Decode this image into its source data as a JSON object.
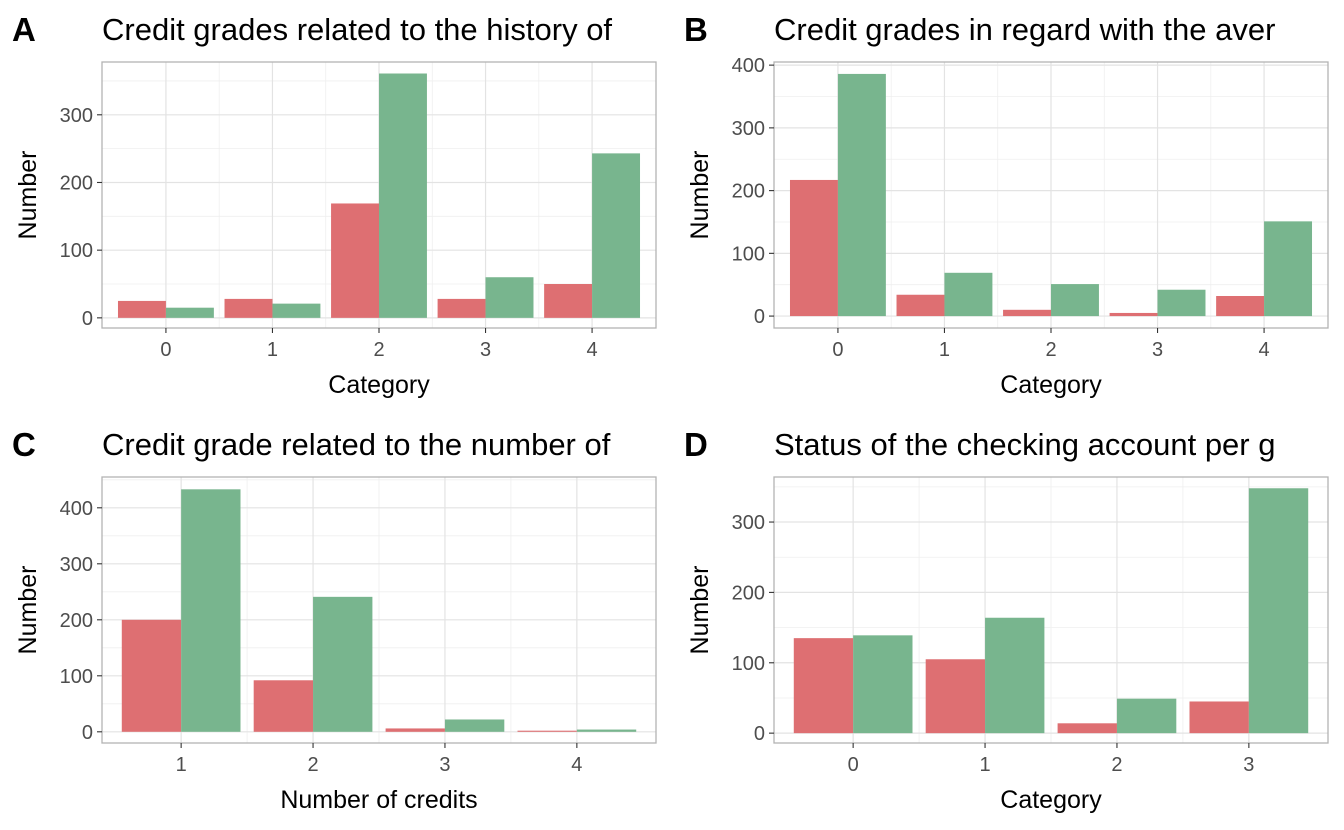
{
  "colors": {
    "bad": "#de6f72",
    "good": "#78b58e",
    "grid": "#e3e3e3",
    "frame": "#b3b3b3",
    "tick_text": "#4d4d4d"
  },
  "chart_data": [
    {
      "panel_label": "A",
      "type": "bar",
      "title": "Credit grades related to the history of",
      "xlabel": "Category",
      "ylabel": "Number",
      "categories": [
        "0",
        "1",
        "2",
        "3",
        "4"
      ],
      "series": [
        {
          "values": [
            25,
            28,
            169,
            28,
            50
          ]
        },
        {
          "values": [
            15,
            21,
            361,
            60,
            243
          ]
        }
      ],
      "ylim": [
        -15,
        378
      ],
      "yticks": [
        0,
        100,
        200,
        300
      ],
      "grid": true,
      "legend": "none"
    },
    {
      "panel_label": "B",
      "type": "bar",
      "title": "Credit grades in regard with the aver",
      "xlabel": "Category",
      "ylabel": "Number",
      "categories": [
        "0",
        "1",
        "2",
        "3",
        "4"
      ],
      "series": [
        {
          "values": [
            217,
            34,
            10,
            5,
            32
          ]
        },
        {
          "values": [
            386,
            69,
            51,
            42,
            151
          ]
        }
      ],
      "ylim": [
        -19,
        405
      ],
      "yticks": [
        0,
        100,
        200,
        300,
        400
      ],
      "grid": true,
      "legend": "none"
    },
    {
      "panel_label": "C",
      "type": "bar",
      "title": "Credit grade related to the number of",
      "xlabel": "Number of credits",
      "ylabel": "Number",
      "categories": [
        "1",
        "2",
        "3",
        "4"
      ],
      "series": [
        {
          "values": [
            200,
            92,
            6,
            2
          ]
        },
        {
          "values": [
            433,
            241,
            22,
            4
          ]
        }
      ],
      "ylim": [
        -20,
        455
      ],
      "yticks": [
        0,
        100,
        200,
        300,
        400
      ],
      "grid": true,
      "legend": "none"
    },
    {
      "panel_label": "D",
      "type": "bar",
      "title": "Status of the checking account per g",
      "xlabel": "Category",
      "ylabel": "Number",
      "categories": [
        "0",
        "1",
        "2",
        "3"
      ],
      "series": [
        {
          "values": [
            135,
            105,
            14,
            45
          ]
        },
        {
          "values": [
            139,
            164,
            49,
            348
          ]
        }
      ],
      "ylim": [
        -14,
        364
      ],
      "yticks": [
        0,
        100,
        200,
        300
      ],
      "grid": true,
      "legend": "none"
    }
  ]
}
